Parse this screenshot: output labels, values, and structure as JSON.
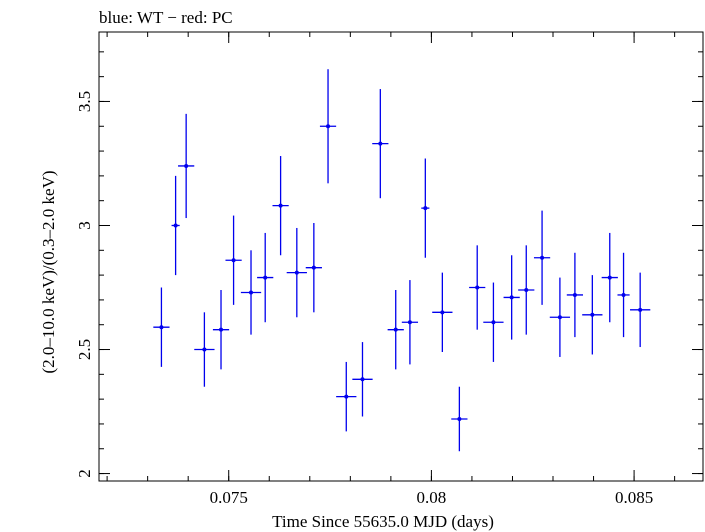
{
  "chart_data": {
    "type": "scatter",
    "title": "blue: WT − red: PC",
    "xlabel": "Time Since 55635.0 MJD (days)",
    "ylabel": "(2.0–10.0 keV)/(0.3–2.0 keV)",
    "xlim": [
      0.0718,
      0.0867
    ],
    "ylim": [
      1.97,
      3.78
    ],
    "x_ticks": [
      0.075,
      0.08,
      0.085
    ],
    "x_tick_labels": [
      "0.075",
      "0.08",
      "0.085"
    ],
    "y_ticks": [
      2,
      2.5,
      3,
      3.5
    ],
    "y_tick_labels": [
      "2",
      "2.5",
      "3",
      "3.5"
    ],
    "x_minor_step": 0.001,
    "y_minor_step": 0.1,
    "grid": false,
    "series": [
      {
        "color": "#0000ee",
        "points": [
          {
            "x": 0.07334,
            "xerr": 0.0002,
            "y": 2.59,
            "yerr": 0.16
          },
          {
            "x": 0.07369,
            "xerr": 0.0001,
            "y": 3.0,
            "yerr": 0.2
          },
          {
            "x": 0.07395,
            "xerr": 0.0002,
            "y": 3.24,
            "yerr": 0.21
          },
          {
            "x": 0.0744,
            "xerr": 0.00025,
            "y": 2.5,
            "yerr": 0.15
          },
          {
            "x": 0.07481,
            "xerr": 0.0002,
            "y": 2.58,
            "yerr": 0.16
          },
          {
            "x": 0.07512,
            "xerr": 0.0002,
            "y": 2.86,
            "yerr": 0.18
          },
          {
            "x": 0.07555,
            "xerr": 0.00025,
            "y": 2.73,
            "yerr": 0.17
          },
          {
            "x": 0.0759,
            "xerr": 0.0002,
            "y": 2.79,
            "yerr": 0.18
          },
          {
            "x": 0.07628,
            "xerr": 0.0002,
            "y": 3.08,
            "yerr": 0.2
          },
          {
            "x": 0.07668,
            "xerr": 0.00025,
            "y": 2.81,
            "yerr": 0.18
          },
          {
            "x": 0.0771,
            "xerr": 0.0002,
            "y": 2.83,
            "yerr": 0.18
          },
          {
            "x": 0.07745,
            "xerr": 0.0002,
            "y": 3.4,
            "yerr": 0.23
          },
          {
            "x": 0.0779,
            "xerr": 0.00025,
            "y": 2.31,
            "yerr": 0.14
          },
          {
            "x": 0.0783,
            "xerr": 0.00025,
            "y": 2.38,
            "yerr": 0.15
          },
          {
            "x": 0.07874,
            "xerr": 0.0002,
            "y": 3.33,
            "yerr": 0.22
          },
          {
            "x": 0.07912,
            "xerr": 0.0002,
            "y": 2.58,
            "yerr": 0.16
          },
          {
            "x": 0.07947,
            "xerr": 0.0002,
            "y": 2.61,
            "yerr": 0.17
          },
          {
            "x": 0.07985,
            "xerr": 0.0001,
            "y": 3.07,
            "yerr": 0.2
          },
          {
            "x": 0.08027,
            "xerr": 0.00025,
            "y": 2.65,
            "yerr": 0.16
          },
          {
            "x": 0.08069,
            "xerr": 0.0002,
            "y": 2.22,
            "yerr": 0.13
          },
          {
            "x": 0.08113,
            "xerr": 0.0002,
            "y": 2.75,
            "yerr": 0.17
          },
          {
            "x": 0.08153,
            "xerr": 0.00025,
            "y": 2.61,
            "yerr": 0.16
          },
          {
            "x": 0.08198,
            "xerr": 0.0002,
            "y": 2.71,
            "yerr": 0.17
          },
          {
            "x": 0.08234,
            "xerr": 0.0002,
            "y": 2.74,
            "yerr": 0.18
          },
          {
            "x": 0.08273,
            "xerr": 0.0002,
            "y": 2.87,
            "yerr": 0.19
          },
          {
            "x": 0.08317,
            "xerr": 0.00025,
            "y": 2.63,
            "yerr": 0.16
          },
          {
            "x": 0.08354,
            "xerr": 0.0002,
            "y": 2.72,
            "yerr": 0.17
          },
          {
            "x": 0.08397,
            "xerr": 0.00025,
            "y": 2.64,
            "yerr": 0.16
          },
          {
            "x": 0.0844,
            "xerr": 0.0002,
            "y": 2.79,
            "yerr": 0.18
          },
          {
            "x": 0.08474,
            "xerr": 0.00015,
            "y": 2.72,
            "yerr": 0.17
          },
          {
            "x": 0.08515,
            "xerr": 0.00025,
            "y": 2.66,
            "yerr": 0.15
          }
        ]
      }
    ]
  }
}
